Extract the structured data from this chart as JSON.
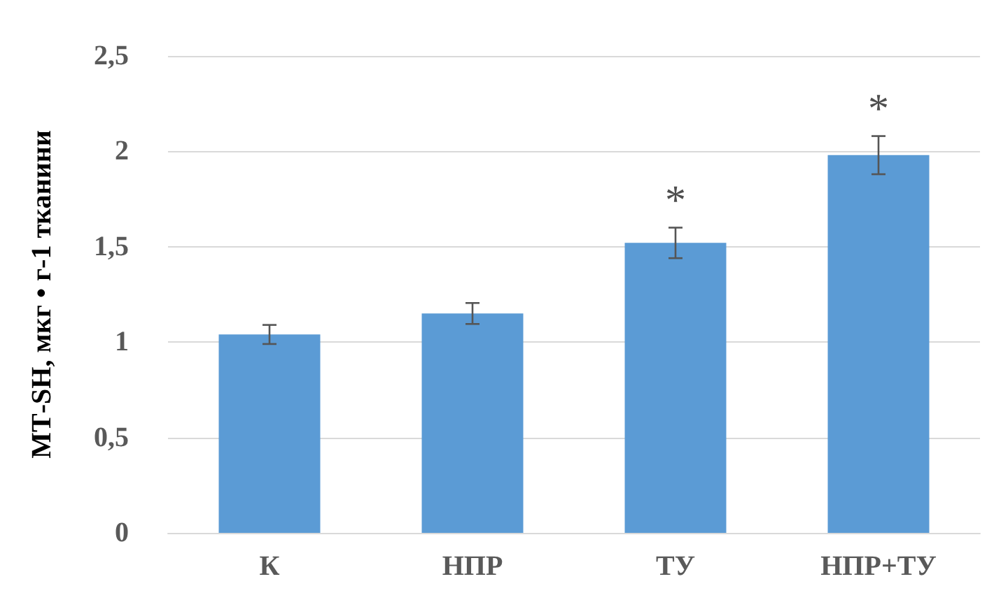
{
  "chart_data": {
    "type": "bar",
    "ylabel": "МТ-SH, мкг • г-1 тканини",
    "categories": [
      "К",
      "НПР",
      "ТУ",
      "НПР+ТУ"
    ],
    "values": [
      1.04,
      1.15,
      1.52,
      1.98
    ],
    "errors": [
      0.05,
      0.055,
      0.08,
      0.1
    ],
    "color": "#5b9bd5",
    "ylim": [
      0,
      2.5
    ],
    "yticks": [
      {
        "value": 0,
        "label": "0"
      },
      {
        "value": 0.5,
        "label": "0,5"
      },
      {
        "value": 1,
        "label": "1"
      },
      {
        "value": 1.5,
        "label": "1,5"
      },
      {
        "value": 2,
        "label": "2"
      },
      {
        "value": 2.5,
        "label": "2,5"
      }
    ],
    "grid": "y",
    "annotations": [
      {
        "text": "*",
        "x": "ТУ",
        "y": 1.52
      },
      {
        "text": "*",
        "x": "НПР+ТУ",
        "y": 1.98
      }
    ]
  }
}
